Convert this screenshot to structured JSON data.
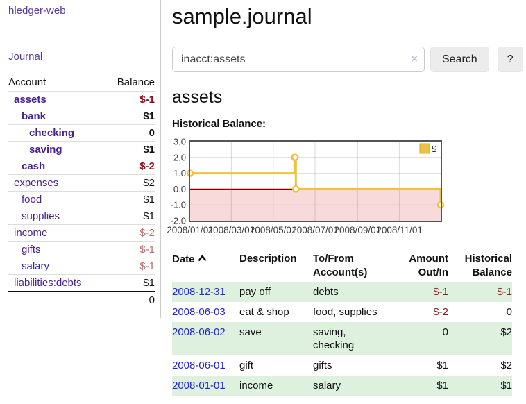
{
  "app": {
    "brand": "hledger-web",
    "nav_journal": "Journal"
  },
  "sidebar": {
    "columns": {
      "account": "Account",
      "balance": "Balance"
    },
    "accounts": [
      {
        "name": "assets",
        "depth": 1,
        "bold": true,
        "balance": "$-1",
        "neg": "strong"
      },
      {
        "name": "bank",
        "depth": 2,
        "bold": true,
        "balance": "$1",
        "neg": "none"
      },
      {
        "name": "checking",
        "depth": 3,
        "bold": true,
        "balance": "0",
        "neg": "none"
      },
      {
        "name": "saving",
        "depth": 3,
        "bold": true,
        "balance": "$1",
        "neg": "none"
      },
      {
        "name": "cash",
        "depth": 2,
        "bold": true,
        "balance": "$-2",
        "neg": "strong"
      },
      {
        "name": "expenses",
        "depth": 1,
        "bold": false,
        "balance": "$2",
        "neg": "none"
      },
      {
        "name": "food",
        "depth": 2,
        "bold": false,
        "balance": "$1",
        "neg": "none"
      },
      {
        "name": "supplies",
        "depth": 2,
        "bold": false,
        "balance": "$1",
        "neg": "none"
      },
      {
        "name": "income",
        "depth": 1,
        "bold": false,
        "balance": "$-2",
        "neg": "soft"
      },
      {
        "name": "gifts",
        "depth": 2,
        "bold": false,
        "balance": "$-1",
        "neg": "soft"
      },
      {
        "name": "salary",
        "depth": 2,
        "bold": false,
        "balance": "$-1",
        "neg": "soft",
        "blue": true
      },
      {
        "name": "liabilities:debts",
        "depth": 1,
        "bold": false,
        "balance": "$1",
        "neg": "none"
      }
    ],
    "total": "0"
  },
  "header": {
    "title": "sample.journal"
  },
  "search": {
    "value": "inacct:assets",
    "clear_icon": "×",
    "button_label": "Search",
    "help_label": "?"
  },
  "account_page": {
    "heading": "assets",
    "chart_label": "Historical Balance:"
  },
  "chart_data": {
    "type": "line",
    "title": "Historical Balance",
    "step": true,
    "series": [
      {
        "name": "$",
        "color": "#EDC240",
        "points": [
          [
            "2008-01-01",
            1
          ],
          [
            "2008-06-01",
            2
          ],
          [
            "2008-06-02",
            2
          ],
          [
            "2008-06-03",
            0
          ],
          [
            "2008-12-31",
            -1
          ]
        ]
      }
    ],
    "xlim": [
      "2008-01-01",
      "2008-12-31"
    ],
    "ylim": [
      -2,
      3
    ],
    "x_ticks": [
      {
        "date": "2008-01-01",
        "label": "2008/01/01"
      },
      {
        "date": "2008-03-01",
        "label": "2008/03/01"
      },
      {
        "date": "2008-05-01",
        "label": "2008/05/01"
      },
      {
        "date": "2008-07-01",
        "label": "2008/07/01"
      },
      {
        "date": "2008-09-01",
        "label": "2008/09/01"
      },
      {
        "date": "2008-11-01",
        "label": "2008/11/01"
      }
    ],
    "y_ticks": [
      {
        "value": 3,
        "label": "3.0"
      },
      {
        "value": 2,
        "label": "2.0"
      },
      {
        "value": 1,
        "label": "1.0"
      },
      {
        "value": 0,
        "label": "0.0"
      },
      {
        "value": -1,
        "label": "-1.0"
      },
      {
        "value": -2,
        "label": "-2.0"
      }
    ],
    "grid": true,
    "legend": {
      "label": "$",
      "position": "top-right"
    },
    "negative_region": {
      "below": 0,
      "color": "#f8dada"
    },
    "zero_line_color": "#8b0000",
    "border_color": "#545454"
  },
  "register": {
    "columns": [
      {
        "line1": "Date",
        "line2": ""
      },
      {
        "line1": "Description",
        "line2": ""
      },
      {
        "line1": "To/From",
        "line2": "Account(s)"
      },
      {
        "line1": "Amount",
        "line2": "Out/In"
      },
      {
        "line1": "Historical",
        "line2": "Balance"
      }
    ],
    "rows": [
      {
        "date": "2008-12-31",
        "description": "pay off",
        "accounts": "debts",
        "amount": "$-1",
        "amount_neg": true,
        "balance": "$-1",
        "balance_neg": true
      },
      {
        "date": "2008-06-03",
        "description": "eat & shop",
        "accounts": "food, supplies",
        "amount": "$-2",
        "amount_neg": true,
        "balance": "0",
        "balance_neg": false
      },
      {
        "date": "2008-06-02",
        "description": "save",
        "accounts": "saving, checking",
        "amount": "0",
        "amount_neg": false,
        "balance": "$2",
        "balance_neg": false
      },
      {
        "date": "2008-06-01",
        "description": "gift",
        "accounts": "gifts",
        "amount": "$1",
        "amount_neg": false,
        "balance": "$2",
        "balance_neg": false
      },
      {
        "date": "2008-01-01",
        "description": "income",
        "accounts": "salary",
        "amount": "$1",
        "amount_neg": false,
        "balance": "$1",
        "balance_neg": false
      }
    ]
  }
}
